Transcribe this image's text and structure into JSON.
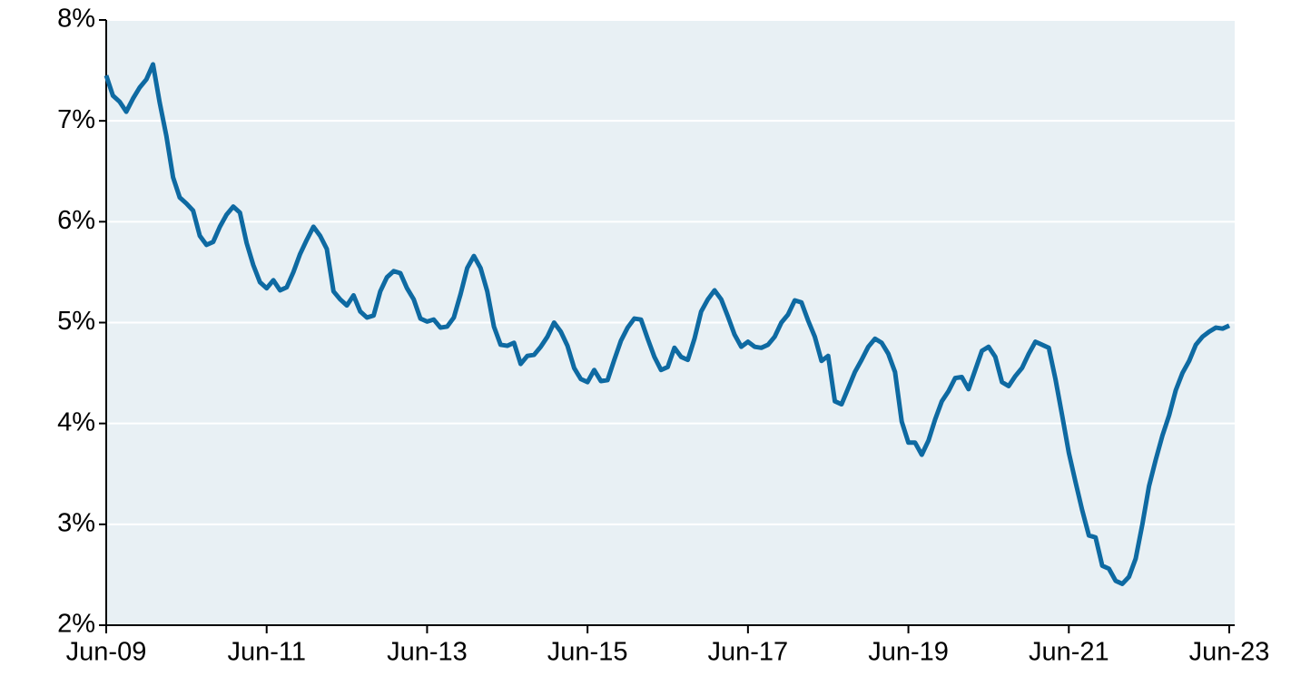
{
  "chart_data": {
    "type": "line",
    "categories": [
      "Jun-09",
      null,
      null,
      null,
      null,
      null,
      null,
      null,
      null,
      null,
      null,
      null,
      null,
      null,
      null,
      null,
      null,
      null,
      null,
      null,
      null,
      null,
      null,
      null,
      "Jun-11",
      null,
      null,
      null,
      null,
      null,
      null,
      null,
      null,
      null,
      null,
      null,
      null,
      null,
      null,
      null,
      null,
      null,
      null,
      null,
      null,
      null,
      null,
      null,
      "Jun-13",
      null,
      null,
      null,
      null,
      null,
      null,
      null,
      null,
      null,
      null,
      null,
      null,
      null,
      null,
      null,
      null,
      null,
      null,
      null,
      null,
      null,
      null,
      null,
      "Jun-15",
      null,
      null,
      null,
      null,
      null,
      null,
      null,
      null,
      null,
      null,
      null,
      null,
      null,
      null,
      null,
      null,
      null,
      null,
      null,
      null,
      null,
      null,
      null,
      "Jun-17",
      null,
      null,
      null,
      null,
      null,
      null,
      null,
      null,
      null,
      null,
      null,
      null,
      null,
      null,
      null,
      null,
      null,
      null,
      null,
      null,
      null,
      null,
      null,
      "Jun-19",
      null,
      null,
      null,
      null,
      null,
      null,
      null,
      null,
      null,
      null,
      null,
      null,
      null,
      null,
      null,
      null,
      null,
      null,
      null,
      null,
      null,
      null,
      null,
      "Jun-21",
      null,
      null,
      null,
      null,
      null,
      null,
      null,
      null,
      null,
      null,
      null,
      null,
      null,
      null,
      null,
      null,
      null,
      null,
      null,
      null,
      null,
      null,
      null,
      "Jun-23"
    ],
    "values": [
      7.45,
      7.25,
      7.19,
      7.09,
      7.22,
      7.33,
      7.41,
      7.56,
      7.18,
      6.85,
      6.44,
      6.24,
      6.18,
      6.11,
      5.86,
      5.77,
      5.8,
      5.95,
      6.07,
      6.15,
      6.09,
      5.79,
      5.57,
      5.4,
      5.34,
      5.42,
      5.32,
      5.35,
      5.5,
      5.68,
      5.82,
      5.95,
      5.86,
      5.73,
      5.31,
      5.23,
      5.17,
      5.27,
      5.11,
      5.05,
      5.07,
      5.31,
      5.45,
      5.51,
      5.49,
      5.34,
      5.23,
      5.04,
      5.01,
      5.03,
      4.95,
      4.96,
      5.05,
      5.28,
      5.54,
      5.66,
      5.54,
      5.31,
      4.96,
      4.78,
      4.77,
      4.8,
      4.59,
      4.67,
      4.68,
      4.76,
      4.86,
      5.0,
      4.91,
      4.77,
      4.55,
      4.44,
      4.41,
      4.53,
      4.42,
      4.43,
      4.63,
      4.82,
      4.95,
      5.04,
      5.03,
      4.84,
      4.66,
      4.53,
      4.56,
      4.75,
      4.66,
      4.63,
      4.84,
      5.11,
      5.23,
      5.32,
      5.23,
      5.06,
      4.88,
      4.76,
      4.81,
      4.76,
      4.75,
      4.78,
      4.86,
      5.0,
      5.08,
      5.22,
      5.2,
      5.02,
      4.86,
      4.62,
      4.67,
      4.22,
      4.19,
      4.35,
      4.51,
      4.63,
      4.76,
      4.84,
      4.8,
      4.69,
      4.51,
      4.02,
      3.81,
      3.81,
      3.69,
      3.83,
      4.04,
      4.22,
      4.32,
      4.45,
      4.46,
      4.34,
      4.53,
      4.72,
      4.76,
      4.66,
      4.41,
      4.37,
      4.47,
      4.55,
      4.69,
      4.81,
      4.78,
      4.75,
      4.44,
      4.08,
      3.71,
      3.42,
      3.14,
      2.89,
      2.87,
      2.59,
      2.56,
      2.44,
      2.41,
      2.48,
      2.66,
      3.0,
      3.38,
      3.64,
      3.88,
      4.08,
      4.33,
      4.5,
      4.62,
      4.78,
      4.86,
      4.91,
      4.95,
      4.94,
      4.97
    ],
    "color": "#0e6aa2",
    "ylim": [
      2,
      8
    ],
    "yticks": [
      {
        "value": 2,
        "label": "2%"
      },
      {
        "value": 3,
        "label": "3%"
      },
      {
        "value": 4,
        "label": "4%"
      },
      {
        "value": 5,
        "label": "5%"
      },
      {
        "value": 6,
        "label": "6%"
      },
      {
        "value": 7,
        "label": "7%"
      },
      {
        "value": 8,
        "label": "8%"
      }
    ],
    "grid": true
  }
}
